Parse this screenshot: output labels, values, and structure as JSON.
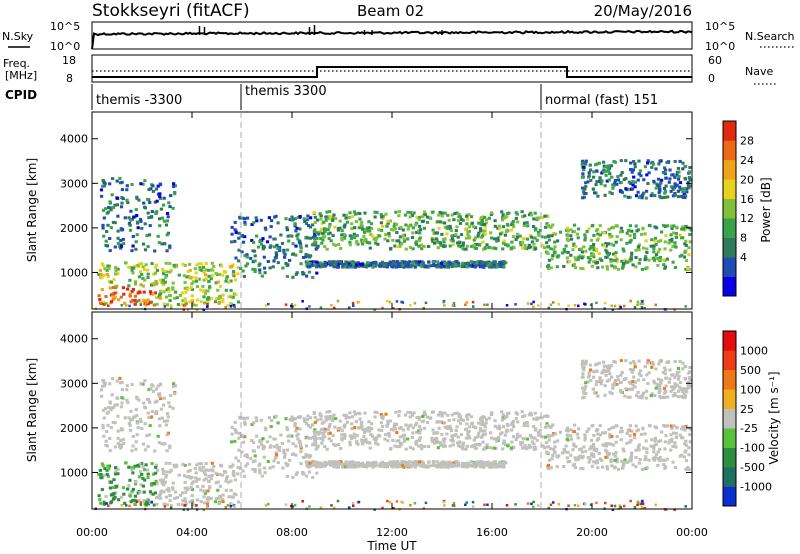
{
  "header": {
    "title": "Stokkseyri (fitACF)",
    "beam": "Beam 02",
    "date": "20/May/2016"
  },
  "panels": {
    "nsky": {
      "left_label": "N.Sky",
      "left_ticks": [
        "10^5",
        "10^0"
      ],
      "right_label": "N.Search",
      "right_ticks": [
        "10^5",
        "10^0"
      ]
    },
    "freq": {
      "left_label_1": "Freq.",
      "left_label_2": "[MHz]",
      "left_ticks": [
        "18",
        "8"
      ],
      "right_label": "Nave",
      "right_ticks": [
        "60",
        "0"
      ]
    },
    "cpid": {
      "label": "CPID",
      "segments": [
        {
          "label": "themis -3300",
          "start_hour": 0
        },
        {
          "label": "themis 3300",
          "start_hour": 6
        },
        {
          "label": "normal (fast) 151",
          "start_hour": 18
        }
      ]
    }
  },
  "chart_data": [
    {
      "type": "heatmap",
      "name": "power",
      "ylabel": "Slant Range [km]",
      "xlim": [
        0,
        24
      ],
      "ylim": [
        180,
        4600
      ],
      "yticks": [
        "1000",
        "2000",
        "3000",
        "4000"
      ],
      "colorbar": {
        "label": "Power [dB]",
        "ticks": [
          "28",
          "24",
          "20",
          "16",
          "12",
          "8",
          "4"
        ],
        "colors": [
          "#0a00e6",
          "#1e4db4",
          "#2f7a5e",
          "#39a24a",
          "#80c13c",
          "#e6d21f",
          "#f0a21a",
          "#ec6a16",
          "#e02a10"
        ]
      },
      "echo_bands": [
        {
          "t": [
            0.3,
            3.3
          ],
          "range": [
            1500,
            3150
          ],
          "level": "low"
        },
        {
          "t": [
            0.2,
            5.8
          ],
          "range": [
            300,
            1250
          ],
          "level": "high"
        },
        {
          "t": [
            5.5,
            9.0
          ],
          "range": [
            900,
            2300
          ],
          "level": "low"
        },
        {
          "t": [
            8.8,
            18.2
          ],
          "range": [
            1550,
            2400
          ],
          "level": "mid"
        },
        {
          "t": [
            8.5,
            16.5
          ],
          "range": [
            1150,
            1280
          ],
          "level": "low"
        },
        {
          "t": [
            18.1,
            23.9
          ],
          "range": [
            1100,
            2100
          ],
          "level": "mid"
        },
        {
          "t": [
            19.5,
            23.9
          ],
          "range": [
            2700,
            3550
          ],
          "level": "low"
        }
      ]
    },
    {
      "type": "heatmap",
      "name": "velocity",
      "ylabel": "Slant Range [km]",
      "xlabel": "Time UT",
      "xlim": [
        0,
        24
      ],
      "ylim": [
        180,
        4600
      ],
      "xticks": [
        "00:00",
        "04:00",
        "08:00",
        "12:00",
        "16:00",
        "20:00",
        "00:00"
      ],
      "yticks": [
        "1000",
        "2000",
        "3000",
        "4000"
      ],
      "colorbar": {
        "label": "Velocity [m s⁻¹]",
        "ticks": [
          "1000",
          "500",
          "100",
          "25",
          "-25",
          "-100",
          "-500",
          "-1000"
        ],
        "colors": [
          "#0a2fd0",
          "#1e7060",
          "#2e8d3e",
          "#58c23a",
          "#c0c0bc",
          "#eeb020",
          "#f07818",
          "#ee3c14",
          "#e40c0c"
        ]
      }
    }
  ]
}
